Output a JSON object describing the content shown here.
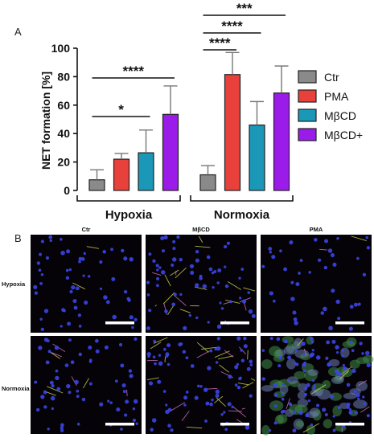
{
  "panel_a_label": "A",
  "panel_b_label": "B",
  "chart_data": {
    "type": "bar",
    "ylabel": "NET formation [%]",
    "ylim": [
      0,
      100
    ],
    "yticks": [
      0,
      20,
      40,
      60,
      80,
      100
    ],
    "groups": [
      "Hypoxia",
      "Normoxia"
    ],
    "series": [
      {
        "name": "Ctr",
        "color": "#8a8a8a",
        "values": [
          7.5,
          11
        ],
        "errors": [
          7,
          6.5
        ]
      },
      {
        "name": "PMA",
        "color": "#e8403a",
        "values": [
          22,
          81.5
        ],
        "errors": [
          4,
          15.5
        ]
      },
      {
        "name": "MβCD",
        "color": "#1b97b8",
        "values": [
          26.5,
          46
        ],
        "errors": [
          16,
          16.5
        ]
      },
      {
        "name": "MβCD+",
        "color": "#9b1be8",
        "values": [
          53.5,
          68.5
        ],
        "errors": [
          20,
          19
        ]
      }
    ],
    "significance": [
      {
        "group": 0,
        "from": 0,
        "to": 2,
        "label": "*"
      },
      {
        "group": 0,
        "from": 0,
        "to": 3,
        "label": "****"
      },
      {
        "group": 1,
        "from": 0,
        "to": 1,
        "label": "****"
      },
      {
        "group": 1,
        "from": 0,
        "to": 2,
        "label": "****"
      },
      {
        "group": 1,
        "from": 0,
        "to": 3,
        "label": "***"
      }
    ]
  },
  "micrographs": {
    "columns": [
      "Ctr",
      "MβCD",
      "PMA"
    ],
    "rows": [
      "Hypoxia",
      "Normoxia"
    ]
  }
}
